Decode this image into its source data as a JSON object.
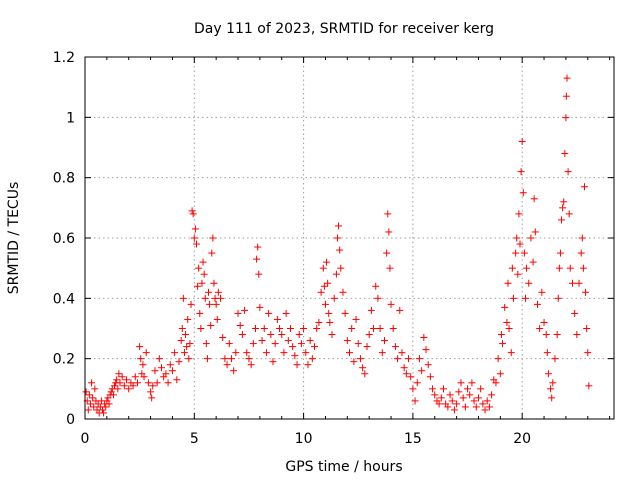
{
  "chart_data": {
    "type": "scatter",
    "title": "Day 111 of 2023, SRMTID for receiver kerg",
    "xlabel": "GPS time / hours",
    "ylabel": "SRMTID / TECUs",
    "xlim": [
      0,
      24.2
    ],
    "ylim": [
      0,
      1.2
    ],
    "xticks": [
      0,
      5,
      10,
      15,
      20
    ],
    "xtick_labels": [
      "0",
      "5",
      "10",
      "15",
      "20"
    ],
    "yticks": [
      0,
      0.2,
      0.4,
      0.6,
      0.8,
      1.0,
      1.2
    ],
    "ytick_labels": [
      "0",
      "0.2",
      "0.4",
      "0.6",
      "0.8",
      "1",
      "1.2"
    ],
    "grid": true,
    "marker": "+",
    "series": [
      {
        "name": "SRMTID",
        "color": "#ff0000",
        "points": [
          [
            0.05,
            0.09
          ],
          [
            0.1,
            0.06
          ],
          [
            0.15,
            0.03
          ],
          [
            0.2,
            0.08
          ],
          [
            0.25,
            0.05
          ],
          [
            0.3,
            0.12
          ],
          [
            0.35,
            0.07
          ],
          [
            0.4,
            0.04
          ],
          [
            0.45,
            0.1
          ],
          [
            0.5,
            0.06
          ],
          [
            0.55,
            0.03
          ],
          [
            0.6,
            0.05
          ],
          [
            0.65,
            0.02
          ],
          [
            0.7,
            0.04
          ],
          [
            0.75,
            0.06
          ],
          [
            0.8,
            0.03
          ],
          [
            0.85,
            0.02
          ],
          [
            0.9,
            0.05
          ],
          [
            0.95,
            0.04
          ],
          [
            1.0,
            0.06
          ],
          [
            1.05,
            0.07
          ],
          [
            1.1,
            0.05
          ],
          [
            1.15,
            0.08
          ],
          [
            1.2,
            0.09
          ],
          [
            1.25,
            0.1
          ],
          [
            1.3,
            0.08
          ],
          [
            1.35,
            0.11
          ],
          [
            1.4,
            0.12
          ],
          [
            1.45,
            0.13
          ],
          [
            1.5,
            0.1
          ],
          [
            1.55,
            0.15
          ],
          [
            1.6,
            0.12
          ],
          [
            1.7,
            0.14
          ],
          [
            1.8,
            0.11
          ],
          [
            1.9,
            0.13
          ],
          [
            2.0,
            0.1
          ],
          [
            2.1,
            0.12
          ],
          [
            2.2,
            0.11
          ],
          [
            2.3,
            0.14
          ],
          [
            2.4,
            0.12
          ],
          [
            2.5,
            0.24
          ],
          [
            2.55,
            0.2
          ],
          [
            2.6,
            0.15
          ],
          [
            2.65,
            0.18
          ],
          [
            2.7,
            0.14
          ],
          [
            2.8,
            0.22
          ],
          [
            2.9,
            0.12
          ],
          [
            3.0,
            0.09
          ],
          [
            3.05,
            0.07
          ],
          [
            3.1,
            0.11
          ],
          [
            3.2,
            0.16
          ],
          [
            3.3,
            0.12
          ],
          [
            3.4,
            0.2
          ],
          [
            3.5,
            0.17
          ],
          [
            3.6,
            0.14
          ],
          [
            3.7,
            0.15
          ],
          [
            3.8,
            0.12
          ],
          [
            3.9,
            0.18
          ],
          [
            4.0,
            0.16
          ],
          [
            4.1,
            0.22
          ],
          [
            4.2,
            0.13
          ],
          [
            4.3,
            0.19
          ],
          [
            4.4,
            0.26
          ],
          [
            4.45,
            0.3
          ],
          [
            4.5,
            0.4
          ],
          [
            4.55,
            0.22
          ],
          [
            4.6,
            0.28
          ],
          [
            4.65,
            0.24
          ],
          [
            4.7,
            0.33
          ],
          [
            4.75,
            0.2
          ],
          [
            4.8,
            0.25
          ],
          [
            4.85,
            0.38
          ],
          [
            4.9,
            0.69
          ],
          [
            4.95,
            0.68
          ],
          [
            5.0,
            0.6
          ],
          [
            5.05,
            0.63
          ],
          [
            5.1,
            0.58
          ],
          [
            5.15,
            0.44
          ],
          [
            5.2,
            0.5
          ],
          [
            5.25,
            0.35
          ],
          [
            5.3,
            0.3
          ],
          [
            5.35,
            0.45
          ],
          [
            5.4,
            0.52
          ],
          [
            5.45,
            0.48
          ],
          [
            5.5,
            0.4
          ],
          [
            5.55,
            0.25
          ],
          [
            5.6,
            0.2
          ],
          [
            5.65,
            0.42
          ],
          [
            5.7,
            0.38
          ],
          [
            5.75,
            0.31
          ],
          [
            5.8,
            0.55
          ],
          [
            5.85,
            0.6
          ],
          [
            5.9,
            0.45
          ],
          [
            5.95,
            0.4
          ],
          [
            6.0,
            0.38
          ],
          [
            6.05,
            0.33
          ],
          [
            6.1,
            0.42
          ],
          [
            6.2,
            0.4
          ],
          [
            6.3,
            0.27
          ],
          [
            6.4,
            0.2
          ],
          [
            6.5,
            0.18
          ],
          [
            6.6,
            0.25
          ],
          [
            6.7,
            0.2
          ],
          [
            6.8,
            0.16
          ],
          [
            6.9,
            0.22
          ],
          [
            7.0,
            0.35
          ],
          [
            7.1,
            0.31
          ],
          [
            7.2,
            0.28
          ],
          [
            7.3,
            0.36
          ],
          [
            7.4,
            0.22
          ],
          [
            7.5,
            0.2
          ],
          [
            7.6,
            0.18
          ],
          [
            7.7,
            0.25
          ],
          [
            7.8,
            0.3
          ],
          [
            7.85,
            0.53
          ],
          [
            7.9,
            0.57
          ],
          [
            7.95,
            0.48
          ],
          [
            8.0,
            0.37
          ],
          [
            8.1,
            0.26
          ],
          [
            8.2,
            0.3
          ],
          [
            8.3,
            0.22
          ],
          [
            8.4,
            0.35
          ],
          [
            8.5,
            0.28
          ],
          [
            8.6,
            0.19
          ],
          [
            8.7,
            0.25
          ],
          [
            8.8,
            0.33
          ],
          [
            8.9,
            0.3
          ],
          [
            9.0,
            0.28
          ],
          [
            9.1,
            0.22
          ],
          [
            9.2,
            0.35
          ],
          [
            9.3,
            0.26
          ],
          [
            9.4,
            0.3
          ],
          [
            9.5,
            0.24
          ],
          [
            9.6,
            0.21
          ],
          [
            9.7,
            0.18
          ],
          [
            9.8,
            0.28
          ],
          [
            9.9,
            0.25
          ],
          [
            10.0,
            0.3
          ],
          [
            10.1,
            0.22
          ],
          [
            10.2,
            0.18
          ],
          [
            10.3,
            0.26
          ],
          [
            10.4,
            0.2
          ],
          [
            10.5,
            0.24
          ],
          [
            10.6,
            0.3
          ],
          [
            10.7,
            0.32
          ],
          [
            10.8,
            0.42
          ],
          [
            10.9,
            0.5
          ],
          [
            10.95,
            0.44
          ],
          [
            11.0,
            0.38
          ],
          [
            11.05,
            0.52
          ],
          [
            11.1,
            0.45
          ],
          [
            11.15,
            0.35
          ],
          [
            11.2,
            0.32
          ],
          [
            11.3,
            0.28
          ],
          [
            11.4,
            0.4
          ],
          [
            11.5,
            0.48
          ],
          [
            11.55,
            0.6
          ],
          [
            11.6,
            0.64
          ],
          [
            11.65,
            0.56
          ],
          [
            11.7,
            0.5
          ],
          [
            11.8,
            0.42
          ],
          [
            11.9,
            0.35
          ],
          [
            12.0,
            0.26
          ],
          [
            12.1,
            0.22
          ],
          [
            12.2,
            0.3
          ],
          [
            12.3,
            0.19
          ],
          [
            12.4,
            0.33
          ],
          [
            12.5,
            0.25
          ],
          [
            12.6,
            0.2
          ],
          [
            12.7,
            0.17
          ],
          [
            12.8,
            0.15
          ],
          [
            12.9,
            0.24
          ],
          [
            13.0,
            0.28
          ],
          [
            13.1,
            0.36
          ],
          [
            13.2,
            0.3
          ],
          [
            13.3,
            0.44
          ],
          [
            13.4,
            0.4
          ],
          [
            13.5,
            0.3
          ],
          [
            13.6,
            0.22
          ],
          [
            13.7,
            0.26
          ],
          [
            13.8,
            0.55
          ],
          [
            13.85,
            0.68
          ],
          [
            13.9,
            0.62
          ],
          [
            13.95,
            0.5
          ],
          [
            14.0,
            0.38
          ],
          [
            14.1,
            0.3
          ],
          [
            14.2,
            0.24
          ],
          [
            14.3,
            0.2
          ],
          [
            14.4,
            0.36
          ],
          [
            14.5,
            0.22
          ],
          [
            14.6,
            0.17
          ],
          [
            14.7,
            0.15
          ],
          [
            14.8,
            0.2
          ],
          [
            14.9,
            0.14
          ],
          [
            15.0,
            0.1
          ],
          [
            15.1,
            0.06
          ],
          [
            15.2,
            0.12
          ],
          [
            15.3,
            0.2
          ],
          [
            15.4,
            0.16
          ],
          [
            15.5,
            0.27
          ],
          [
            15.6,
            0.23
          ],
          [
            15.7,
            0.18
          ],
          [
            15.8,
            0.14
          ],
          [
            15.9,
            0.1
          ],
          [
            16.0,
            0.08
          ],
          [
            16.1,
            0.06
          ],
          [
            16.2,
            0.05
          ],
          [
            16.3,
            0.07
          ],
          [
            16.4,
            0.1
          ],
          [
            16.5,
            0.05
          ],
          [
            16.6,
            0.04
          ],
          [
            16.7,
            0.08
          ],
          [
            16.8,
            0.06
          ],
          [
            16.9,
            0.03
          ],
          [
            17.0,
            0.05
          ],
          [
            17.1,
            0.09
          ],
          [
            17.2,
            0.12
          ],
          [
            17.3,
            0.07
          ],
          [
            17.4,
            0.04
          ],
          [
            17.5,
            0.1
          ],
          [
            17.6,
            0.08
          ],
          [
            17.7,
            0.12
          ],
          [
            17.8,
            0.06
          ],
          [
            17.9,
            0.04
          ],
          [
            18.0,
            0.07
          ],
          [
            18.1,
            0.1
          ],
          [
            18.2,
            0.05
          ],
          [
            18.3,
            0.03
          ],
          [
            18.4,
            0.06
          ],
          [
            18.5,
            0.04
          ],
          [
            18.6,
            0.08
          ],
          [
            18.7,
            0.13
          ],
          [
            18.8,
            0.12
          ],
          [
            18.9,
            0.2
          ],
          [
            19.0,
            0.15
          ],
          [
            19.05,
            0.28
          ],
          [
            19.1,
            0.25
          ],
          [
            19.2,
            0.37
          ],
          [
            19.3,
            0.32
          ],
          [
            19.35,
            0.45
          ],
          [
            19.4,
            0.3
          ],
          [
            19.5,
            0.22
          ],
          [
            19.55,
            0.5
          ],
          [
            19.6,
            0.4
          ],
          [
            19.7,
            0.55
          ],
          [
            19.75,
            0.6
          ],
          [
            19.8,
            0.48
          ],
          [
            19.85,
            0.68
          ],
          [
            19.9,
            0.58
          ],
          [
            19.95,
            0.82
          ],
          [
            20.0,
            0.92
          ],
          [
            20.05,
            0.75
          ],
          [
            20.1,
            0.55
          ],
          [
            20.15,
            0.4
          ],
          [
            20.2,
            0.5
          ],
          [
            20.3,
            0.45
          ],
          [
            20.4,
            0.6
          ],
          [
            20.5,
            0.52
          ],
          [
            20.55,
            0.73
          ],
          [
            20.6,
            0.62
          ],
          [
            20.7,
            0.38
          ],
          [
            20.8,
            0.3
          ],
          [
            20.9,
            0.42
          ],
          [
            21.0,
            0.32
          ],
          [
            21.1,
            0.28
          ],
          [
            21.15,
            0.22
          ],
          [
            21.2,
            0.15
          ],
          [
            21.3,
            0.1
          ],
          [
            21.35,
            0.07
          ],
          [
            21.4,
            0.12
          ],
          [
            21.5,
            0.2
          ],
          [
            21.6,
            0.28
          ],
          [
            21.65,
            0.4
          ],
          [
            21.7,
            0.5
          ],
          [
            21.75,
            0.55
          ],
          [
            21.8,
            0.66
          ],
          [
            21.85,
            0.7
          ],
          [
            21.9,
            0.72
          ],
          [
            21.95,
            0.88
          ],
          [
            22.0,
            0.999
          ],
          [
            22.02,
            1.07
          ],
          [
            22.05,
            1.13
          ],
          [
            22.1,
            0.82
          ],
          [
            22.15,
            0.68
          ],
          [
            22.2,
            0.5
          ],
          [
            22.3,
            0.45
          ],
          [
            22.4,
            0.35
          ],
          [
            22.5,
            0.28
          ],
          [
            22.6,
            0.45
          ],
          [
            22.7,
            0.55
          ],
          [
            22.75,
            0.6
          ],
          [
            22.8,
            0.5
          ],
          [
            22.85,
            0.77
          ],
          [
            22.9,
            0.42
          ],
          [
            22.95,
            0.3
          ],
          [
            23.0,
            0.22
          ],
          [
            23.05,
            0.11
          ]
        ]
      }
    ]
  }
}
